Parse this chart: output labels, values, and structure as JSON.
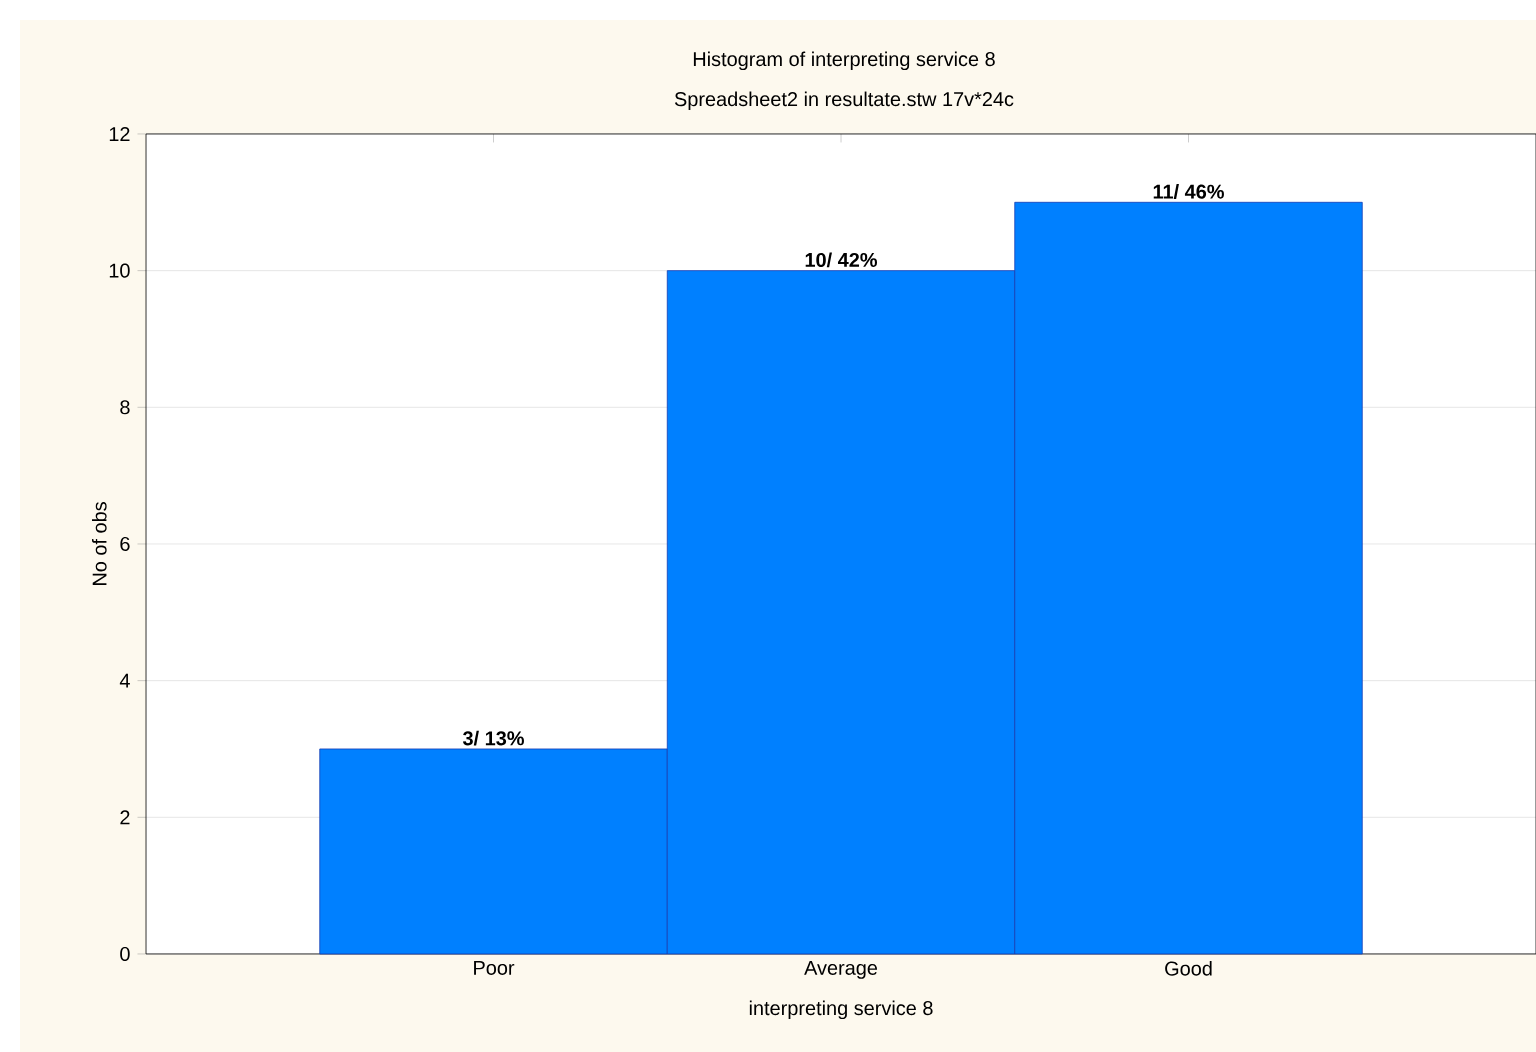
{
  "chart_data": {
    "type": "bar",
    "title": "Histogram of interpreting service 8",
    "subtitle": "Spreadsheet2 in resultate.stw 17v*24c",
    "xlabel": "interpreting service 8",
    "ylabel": "No of obs",
    "categories": [
      "Poor",
      "Average",
      "Good"
    ],
    "values": [
      3,
      10,
      11
    ],
    "value_labels": [
      "3/ 13%",
      "10/ 42%",
      "11/ 46%"
    ],
    "color": "#0080ff",
    "ylim": [
      0,
      12
    ],
    "yticks": [
      0,
      2,
      4,
      6,
      8,
      10,
      12
    ],
    "grid": "y"
  }
}
